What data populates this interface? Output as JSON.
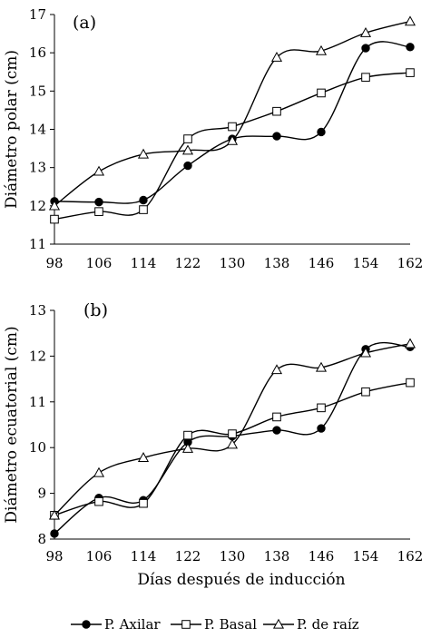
{
  "chart_data": [
    {
      "type": "line",
      "panel_label": "(a)",
      "ylabel": "Diámetro polar (cm)",
      "xlabel": "",
      "x": [
        98,
        106,
        114,
        122,
        130,
        138,
        146,
        154,
        162
      ],
      "ylim": [
        11,
        17
      ],
      "yticks": [
        11,
        12,
        13,
        14,
        15,
        16,
        17
      ],
      "grid": false,
      "series": [
        {
          "name": "P. Axilar",
          "marker": "circle",
          "values": [
            12.12,
            12.1,
            12.15,
            13.05,
            13.75,
            13.82,
            13.93,
            16.12,
            16.15
          ]
        },
        {
          "name": "P. Basal",
          "marker": "square",
          "values": [
            11.65,
            11.85,
            11.9,
            13.75,
            14.07,
            14.47,
            14.95,
            15.36,
            15.48
          ]
        },
        {
          "name": "P. de raíz",
          "marker": "triangle",
          "values": [
            12.0,
            12.9,
            13.35,
            13.45,
            13.7,
            15.88,
            16.05,
            16.52,
            16.82
          ]
        }
      ]
    },
    {
      "type": "line",
      "panel_label": "(b)",
      "ylabel": "Diámetro ecuatorial (cm)",
      "xlabel": "Días después de inducción",
      "x": [
        98,
        106,
        114,
        122,
        130,
        138,
        146,
        154,
        162
      ],
      "ylim": [
        8,
        13
      ],
      "yticks": [
        8,
        9,
        10,
        11,
        12,
        13
      ],
      "grid": false,
      "series": [
        {
          "name": "P. Axilar",
          "marker": "circle",
          "values": [
            8.12,
            8.9,
            8.85,
            10.12,
            10.25,
            10.38,
            10.42,
            12.15,
            12.2
          ]
        },
        {
          "name": "P. Basal",
          "marker": "square",
          "values": [
            8.52,
            8.82,
            8.78,
            10.27,
            10.3,
            10.67,
            10.87,
            11.22,
            11.42
          ]
        },
        {
          "name": "P. de raíz",
          "marker": "triangle",
          "values": [
            8.52,
            9.45,
            9.78,
            9.98,
            10.07,
            11.7,
            11.75,
            12.07,
            12.27
          ]
        }
      ]
    }
  ],
  "legend": {
    "placement": "bottom",
    "entries": [
      "P. Axilar",
      "P. Basal",
      "P. de raíz"
    ]
  }
}
